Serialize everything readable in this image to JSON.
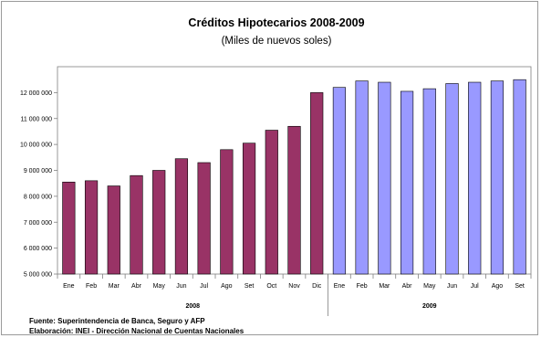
{
  "chart_data": {
    "type": "bar",
    "title": "Créditos Hipotecarios 2008-2009",
    "subtitle": "(Miles de nuevos soles)",
    "categories": [
      "Ene",
      "Feb",
      "Mar",
      "Abr",
      "May",
      "Jun",
      "Jul",
      "Ago",
      "Set",
      "Oct",
      "Nov",
      "Dic",
      "Ene",
      "Feb",
      "Mar",
      "Abr",
      "May",
      "Jun",
      "Jul",
      "Ago",
      "Set"
    ],
    "values": [
      8550000,
      8600000,
      8400000,
      8800000,
      9000000,
      9450000,
      9300000,
      9800000,
      10050000,
      10550000,
      10700000,
      12000000,
      12200000,
      12450000,
      12400000,
      12050000,
      12150000,
      12350000,
      12400000,
      12450000,
      12500000
    ],
    "groups": [
      {
        "label": "2008",
        "count": 12,
        "color": "#993366"
      },
      {
        "label": "2009",
        "count": 9,
        "color": "#9999ff"
      }
    ],
    "ylim": [
      5000000,
      13000000
    ],
    "ytick_labels": [
      "5 000 000",
      "6 000 000",
      "7 000 000",
      "8 000 000",
      "9 000 000",
      "10 000 000",
      "11 000 000",
      "12 000 000"
    ],
    "xlabel": "",
    "ylabel": "",
    "grid": false,
    "legend": "none"
  },
  "notes": {
    "source": "Fuente: Superintendencia de Banca, Seguro y AFP",
    "elaboration": "Elaboración: INEI - Dirección Nacional de Cuentas Nacionales"
  }
}
